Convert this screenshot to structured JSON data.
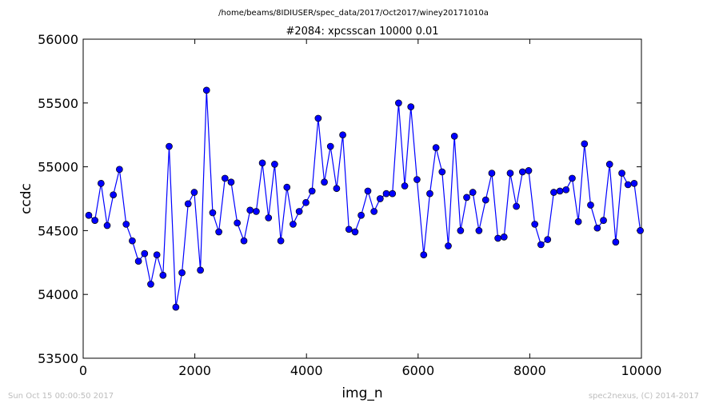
{
  "header": {
    "suptitle": "/home/beams/8IDIUSER/spec_data/2017/Oct2017/winey20171010a",
    "title": "#2084: xpcsscan 10000 0.01"
  },
  "footer": {
    "timestamp": "Sun Oct 15 00:00:50 2017",
    "credit": "spec2nexus, (C) 2014-2017"
  },
  "colors": {
    "line": "#0000ff",
    "marker_fill": "#0000ff",
    "marker_edge": "#000000"
  },
  "chart_data": {
    "type": "line",
    "title": "#2084: xpcsscan 10000 0.01",
    "xlabel": "img_n",
    "ylabel": "ccdc",
    "xlim": [
      0,
      10000
    ],
    "ylim": [
      53500,
      56000
    ],
    "x_ticks": [
      0,
      2000,
      4000,
      6000,
      8000,
      10000
    ],
    "y_ticks": [
      53500,
      54000,
      54500,
      55000,
      55500,
      56000
    ],
    "x_tick_labels": [
      "0",
      "2000",
      "4000",
      "6000",
      "8000",
      "10000"
    ],
    "y_tick_labels": [
      "53500",
      "54000",
      "54500",
      "55000",
      "55500",
      "56000"
    ],
    "grid": false,
    "series": [
      {
        "marker": "circle",
        "x": [
          100,
          210,
          320,
          430,
          540,
          650,
          770,
          880,
          990,
          1100,
          1210,
          1320,
          1430,
          1540,
          1660,
          1770,
          1880,
          1990,
          2100,
          2210,
          2320,
          2430,
          2540,
          2650,
          2760,
          2880,
          2990,
          3100,
          3210,
          3320,
          3430,
          3540,
          3650,
          3760,
          3870,
          3990,
          4100,
          4210,
          4320,
          4430,
          4540,
          4650,
          4760,
          4870,
          4980,
          5100,
          5210,
          5320,
          5430,
          5540,
          5650,
          5760,
          5870,
          5980,
          6100,
          6210,
          6320,
          6430,
          6540,
          6650,
          6760,
          6870,
          6980,
          7090,
          7210,
          7320,
          7430,
          7540,
          7650,
          7760,
          7870,
          7980,
          8090,
          8200,
          8320,
          8430,
          8540,
          8650,
          8760,
          8870,
          8980,
          9090,
          9210,
          9320,
          9430,
          9540,
          9650,
          9760,
          9870,
          9980
        ],
        "y": [
          54620,
          54580,
          54870,
          54540,
          54780,
          54980,
          54550,
          54420,
          54260,
          54320,
          54080,
          54310,
          54150,
          55160,
          53900,
          54170,
          54710,
          54800,
          54190,
          55600,
          54640,
          54490,
          54910,
          54880,
          54560,
          54420,
          54660,
          54650,
          55030,
          54600,
          55020,
          54420,
          54840,
          54550,
          54650,
          54720,
          54810,
          55380,
          54880,
          55160,
          54830,
          55250,
          54510,
          54490,
          54620,
          54810,
          54650,
          54750,
          54790,
          54790,
          55500,
          54850,
          55470,
          54900,
          54310,
          54790,
          55150,
          54960,
          54380,
          55240,
          54500,
          54760,
          54800,
          54500,
          54740,
          54950,
          54440,
          54450,
          54950,
          54690,
          54960,
          54970,
          54550,
          54390,
          54430,
          54800,
          54810,
          54820,
          54910,
          54570,
          55180,
          54700,
          54520,
          54580,
          55020,
          54410,
          54950,
          54860,
          54870,
          54500
        ]
      }
    ]
  }
}
